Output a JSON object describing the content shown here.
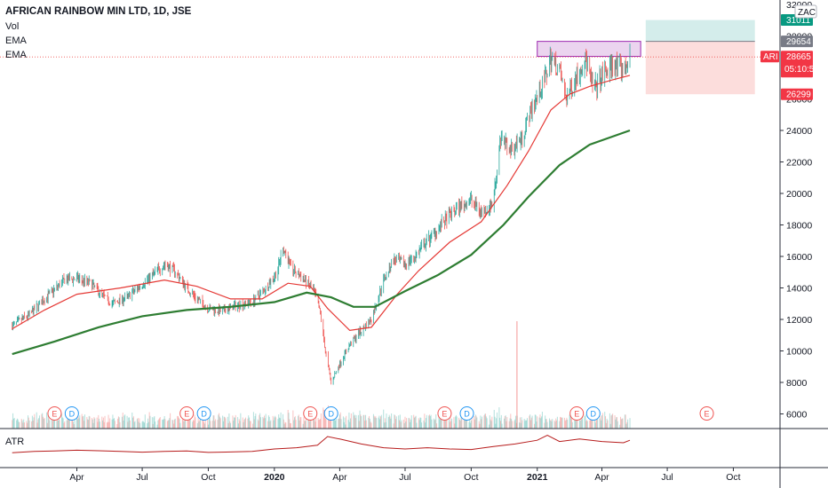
{
  "header": {
    "title": "AFRICAN RAINBOW MIN LTD, 1D, JSE",
    "legend": [
      "Vol",
      "EMA",
      "EMA"
    ]
  },
  "atr_label": "ATR",
  "symbol_label": "ARI",
  "zac_label": "ZAC",
  "countdown": "05:10:53",
  "colors": {
    "up": "#26a69a",
    "down": "#ef5350",
    "ema_fast": "#e53935",
    "ema_slow": "#2e7d32",
    "atr": "#b71c1c",
    "resistance": "#9c27b0",
    "target": "#26a69a",
    "stop": "#ef5350",
    "dividend": "#2196f3"
  },
  "chart_data": {
    "type": "line",
    "title": "AFRICAN RAINBOW MIN LTD, 1D, JSE",
    "x_tick_labels": [
      "Apr",
      "Jul",
      "Oct",
      "2020",
      "Apr",
      "Jul",
      "Oct",
      "2021",
      "Apr",
      "Jul",
      "Oct"
    ],
    "x_tick_dates": [
      "2019-04",
      "2019-07",
      "2019-10",
      "2020-01",
      "2020-04",
      "2020-07",
      "2020-10",
      "2021-01",
      "2021-04",
      "2021-07",
      "2021-10"
    ],
    "y_ticks": [
      6000,
      8000,
      10000,
      12000,
      14000,
      16000,
      18000,
      20000,
      22000,
      24000
    ],
    "y_tick_partial": [
      26000,
      30000,
      32000
    ],
    "ylim": [
      5300,
      32400
    ],
    "series": [
      {
        "kind": "price",
        "points": [
          [
            "2019-01-01",
            11600
          ],
          [
            "2019-01-25",
            12300
          ],
          [
            "2019-02-15",
            13300
          ],
          [
            "2019-03-01",
            13900
          ],
          [
            "2019-03-15",
            14500
          ],
          [
            "2019-04-01",
            14600
          ],
          [
            "2019-04-20",
            14300
          ],
          [
            "2019-05-05",
            13600
          ],
          [
            "2019-05-20",
            13000
          ],
          [
            "2019-06-10",
            13400
          ],
          [
            "2019-06-25",
            14000
          ],
          [
            "2019-07-15",
            14800
          ],
          [
            "2019-08-01",
            15500
          ],
          [
            "2019-08-15",
            15100
          ],
          [
            "2019-09-01",
            14000
          ],
          [
            "2019-09-15",
            13300
          ],
          [
            "2019-10-01",
            12700
          ],
          [
            "2019-10-20",
            12500
          ],
          [
            "2019-11-10",
            12900
          ],
          [
            "2019-12-01",
            13100
          ],
          [
            "2019-12-20",
            14000
          ],
          [
            "2020-01-05",
            15000
          ],
          [
            "2020-01-13",
            16600
          ],
          [
            "2020-01-25",
            15200
          ],
          [
            "2020-02-10",
            14600
          ],
          [
            "2020-02-25",
            13800
          ],
          [
            "2020-03-05",
            12400
          ],
          [
            "2020-03-12",
            10000
          ],
          [
            "2020-03-20",
            8000
          ],
          [
            "2020-03-30",
            9000
          ],
          [
            "2020-04-15",
            10400
          ],
          [
            "2020-05-01",
            11300
          ],
          [
            "2020-05-15",
            12000
          ],
          [
            "2020-06-01",
            14500
          ],
          [
            "2020-06-15",
            15800
          ],
          [
            "2020-07-01",
            15500
          ],
          [
            "2020-07-15",
            16000
          ],
          [
            "2020-08-01",
            17000
          ],
          [
            "2020-08-20",
            18000
          ],
          [
            "2020-09-10",
            19000
          ],
          [
            "2020-10-01",
            19600
          ],
          [
            "2020-10-15",
            18800
          ],
          [
            "2020-10-30",
            19300
          ],
          [
            "2020-11-05",
            21000
          ],
          [
            "2020-11-10",
            23500
          ],
          [
            "2020-11-25",
            22800
          ],
          [
            "2020-12-10",
            23500
          ],
          [
            "2020-12-25",
            25500
          ],
          [
            "2021-01-10",
            27000
          ],
          [
            "2021-01-20",
            28600
          ],
          [
            "2021-02-01",
            27800
          ],
          [
            "2021-02-10",
            26000
          ],
          [
            "2021-02-25",
            27500
          ],
          [
            "2021-03-10",
            28500
          ],
          [
            "2021-03-20",
            26500
          ],
          [
            "2021-04-01",
            27400
          ],
          [
            "2021-04-15",
            28200
          ],
          [
            "2021-05-01",
            27800
          ],
          [
            "2021-05-10",
            28665
          ]
        ]
      },
      {
        "kind": "ema_fast",
        "points": [
          [
            "2019-01-01",
            11400
          ],
          [
            "2019-02-15",
            12600
          ],
          [
            "2019-04-01",
            13600
          ],
          [
            "2019-06-01",
            14000
          ],
          [
            "2019-08-01",
            14500
          ],
          [
            "2019-09-15",
            14100
          ],
          [
            "2019-11-01",
            13300
          ],
          [
            "2019-12-15",
            13300
          ],
          [
            "2020-01-20",
            14300
          ],
          [
            "2020-02-20",
            14100
          ],
          [
            "2020-03-15",
            12700
          ],
          [
            "2020-04-15",
            11300
          ],
          [
            "2020-05-15",
            11500
          ],
          [
            "2020-06-20",
            13600
          ],
          [
            "2020-07-20",
            15100
          ],
          [
            "2020-09-01",
            16900
          ],
          [
            "2020-10-15",
            18200
          ],
          [
            "2020-11-20",
            20500
          ],
          [
            "2020-12-20",
            22700
          ],
          [
            "2021-01-20",
            25300
          ],
          [
            "2021-02-15",
            26300
          ],
          [
            "2021-03-15",
            26800
          ],
          [
            "2021-04-15",
            27200
          ],
          [
            "2021-05-10",
            27500
          ]
        ]
      },
      {
        "kind": "ema_slow",
        "points": [
          [
            "2019-01-01",
            9800
          ],
          [
            "2019-03-01",
            10600
          ],
          [
            "2019-05-01",
            11500
          ],
          [
            "2019-07-01",
            12200
          ],
          [
            "2019-09-01",
            12600
          ],
          [
            "2019-11-01",
            12800
          ],
          [
            "2020-01-01",
            13100
          ],
          [
            "2020-02-15",
            13700
          ],
          [
            "2020-03-20",
            13400
          ],
          [
            "2020-04-20",
            12800
          ],
          [
            "2020-05-20",
            12800
          ],
          [
            "2020-07-01",
            13800
          ],
          [
            "2020-08-15",
            14800
          ],
          [
            "2020-10-01",
            16100
          ],
          [
            "2020-11-15",
            18000
          ],
          [
            "2020-12-20",
            19800
          ],
          [
            "2021-02-01",
            21800
          ],
          [
            "2021-03-15",
            23100
          ],
          [
            "2021-05-10",
            24000
          ]
        ]
      }
    ],
    "atr": {
      "points": [
        [
          "2019-01-01",
          0.35
        ],
        [
          "2019-02-01",
          0.4
        ],
        [
          "2019-03-01",
          0.42
        ],
        [
          "2019-04-01",
          0.45
        ],
        [
          "2019-05-01",
          0.43
        ],
        [
          "2019-06-01",
          0.4
        ],
        [
          "2019-07-01",
          0.37
        ],
        [
          "2019-08-01",
          0.4
        ],
        [
          "2019-09-01",
          0.42
        ],
        [
          "2019-10-01",
          0.36
        ],
        [
          "2019-11-01",
          0.38
        ],
        [
          "2019-12-01",
          0.4
        ],
        [
          "2020-01-01",
          0.5
        ],
        [
          "2020-02-01",
          0.55
        ],
        [
          "2020-03-01",
          0.65
        ],
        [
          "2020-03-15",
          1.0
        ],
        [
          "2020-04-01",
          0.9
        ],
        [
          "2020-05-01",
          0.7
        ],
        [
          "2020-06-01",
          0.55
        ],
        [
          "2020-07-01",
          0.5
        ],
        [
          "2020-08-01",
          0.55
        ],
        [
          "2020-09-01",
          0.5
        ],
        [
          "2020-10-01",
          0.48
        ],
        [
          "2020-11-01",
          0.6
        ],
        [
          "2020-12-01",
          0.7
        ],
        [
          "2021-01-01",
          0.85
        ],
        [
          "2021-01-15",
          1.05
        ],
        [
          "2021-02-01",
          0.8
        ],
        [
          "2021-03-01",
          0.9
        ],
        [
          "2021-04-01",
          0.8
        ],
        [
          "2021-05-01",
          0.75
        ],
        [
          "2021-05-10",
          0.85
        ]
      ]
    },
    "resistance_zone": {
      "from": "2021-01-01",
      "to": "2021-05-25",
      "low": 28700,
      "high": 29654
    },
    "target_zone": {
      "from": "2021-06-01",
      "to": "2021-10-31",
      "low": 29654,
      "high": 31011
    },
    "stop_zone": {
      "from": "2021-06-01",
      "to": "2021-10-31",
      "low": 26299,
      "high": 29654
    },
    "price_labels": [
      {
        "value": 31011,
        "text": "31011",
        "kind": "target"
      },
      {
        "value": 29654,
        "text": "29654",
        "kind": "entry"
      },
      {
        "value": 28665,
        "text": "28665",
        "kind": "last"
      },
      {
        "value": 26299,
        "text": "26299",
        "kind": "stop"
      }
    ],
    "events": [
      {
        "date": "2019-03-01",
        "label": "E"
      },
      {
        "date": "2019-03-25",
        "label": "D"
      },
      {
        "date": "2019-09-01",
        "label": "E"
      },
      {
        "date": "2019-09-25",
        "label": "D"
      },
      {
        "date": "2020-02-20",
        "label": "E"
      },
      {
        "date": "2020-03-20",
        "label": "D"
      },
      {
        "date": "2020-08-25",
        "label": "E"
      },
      {
        "date": "2020-09-25",
        "label": "D"
      },
      {
        "date": "2021-02-25",
        "label": "E"
      },
      {
        "date": "2021-03-20",
        "label": "D"
      },
      {
        "date": "2021-08-25",
        "label": "E"
      }
    ]
  }
}
